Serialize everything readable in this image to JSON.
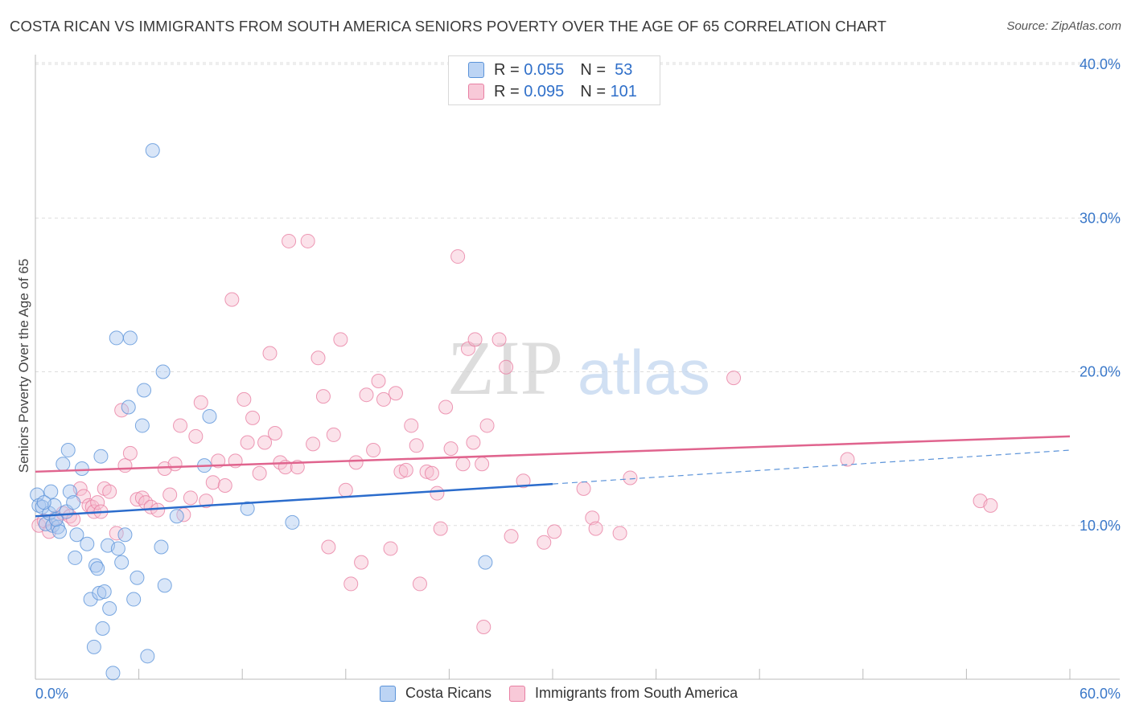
{
  "title": "COSTA RICAN VS IMMIGRANTS FROM SOUTH AMERICA SENIORS POVERTY OVER THE AGE OF 65 CORRELATION CHART",
  "source": "Source: ZipAtlas.com",
  "colors": {
    "blue": "#5b93d9",
    "blue_fill": "#aac8f0",
    "blue_line": "#2b6ccc",
    "pink": "#e87fa3",
    "pink_fill": "#f6bfd1",
    "pink_line": "#e0648e",
    "axis_text": "#3a78c9",
    "grid": "#dddddd"
  },
  "legend": {
    "series": [
      {
        "r_label": "R =",
        "r_value": "0.055",
        "n_label": "N =",
        "n_value": "53"
      },
      {
        "r_label": "R =",
        "r_value": "0.095",
        "n_label": "N =",
        "n_value": "101"
      }
    ]
  },
  "watermark": {
    "part1": "ZIP",
    "part2": "atlas"
  },
  "chart_data": {
    "type": "scatter",
    "title": "COSTA RICAN VS IMMIGRANTS FROM SOUTH AMERICA SENIORS POVERTY OVER THE AGE OF 65 CORRELATION CHART",
    "xlabel": "",
    "ylabel": "Seniors Poverty Over the Age of 65",
    "xlim": [
      0,
      60
    ],
    "ylim": [
      0,
      40
    ],
    "x_tick_labels": [
      "0.0%",
      "60.0%"
    ],
    "y_ticks": [
      10,
      20,
      30,
      40
    ],
    "y_tick_labels": [
      "10.0%",
      "20.0%",
      "30.0%",
      "40.0%"
    ],
    "grid": true,
    "series": [
      {
        "name": "Costa Ricans",
        "color": "#5b93d9",
        "trend": {
          "x0": 0,
          "y0": 10.6,
          "x1": 30,
          "y1": 12.7,
          "dashed_to_x": 60,
          "dashed_to_y": 14.9
        },
        "points": [
          [
            0.1,
            12.0
          ],
          [
            0.2,
            11.3
          ],
          [
            0.4,
            11.2
          ],
          [
            0.6,
            10.1
          ],
          [
            0.8,
            10.8
          ],
          [
            0.9,
            12.2
          ],
          [
            1.0,
            10.0
          ],
          [
            1.1,
            11.3
          ],
          [
            1.3,
            9.9
          ],
          [
            1.4,
            9.6
          ],
          [
            1.6,
            14.0
          ],
          [
            1.8,
            10.9
          ],
          [
            1.9,
            14.9
          ],
          [
            2.0,
            12.2
          ],
          [
            2.2,
            11.5
          ],
          [
            2.3,
            7.9
          ],
          [
            2.4,
            9.4
          ],
          [
            2.7,
            13.7
          ],
          [
            3.0,
            8.8
          ],
          [
            3.2,
            5.2
          ],
          [
            3.4,
            2.1
          ],
          [
            3.5,
            7.4
          ],
          [
            3.6,
            7.2
          ],
          [
            3.7,
            5.6
          ],
          [
            3.8,
            14.5
          ],
          [
            3.9,
            3.3
          ],
          [
            4.0,
            5.7
          ],
          [
            4.2,
            8.7
          ],
          [
            4.3,
            4.6
          ],
          [
            4.5,
            0.4
          ],
          [
            4.7,
            22.2
          ],
          [
            4.8,
            8.5
          ],
          [
            5.0,
            7.6
          ],
          [
            5.2,
            9.4
          ],
          [
            5.4,
            17.7
          ],
          [
            5.5,
            22.2
          ],
          [
            5.7,
            5.2
          ],
          [
            5.9,
            6.6
          ],
          [
            6.2,
            16.5
          ],
          [
            6.3,
            18.8
          ],
          [
            6.5,
            1.5
          ],
          [
            6.8,
            34.4
          ],
          [
            7.3,
            8.6
          ],
          [
            7.4,
            20.0
          ],
          [
            7.5,
            6.1
          ],
          [
            8.2,
            10.6
          ],
          [
            9.8,
            13.9
          ],
          [
            10.1,
            17.1
          ],
          [
            12.3,
            11.1
          ],
          [
            14.9,
            10.2
          ],
          [
            26.1,
            7.6
          ],
          [
            0.5,
            11.5
          ],
          [
            1.2,
            10.4
          ]
        ]
      },
      {
        "name": "Immigrants from South America",
        "color": "#e87fa3",
        "trend": {
          "x0": 0,
          "y0": 13.5,
          "x1": 60,
          "y1": 15.8
        },
        "points": [
          [
            0.2,
            10.0
          ],
          [
            0.5,
            10.3
          ],
          [
            0.8,
            9.6
          ],
          [
            1.2,
            10.5
          ],
          [
            1.6,
            10.8
          ],
          [
            2.0,
            10.6
          ],
          [
            2.2,
            10.4
          ],
          [
            2.6,
            12.4
          ],
          [
            2.8,
            11.9
          ],
          [
            3.1,
            11.3
          ],
          [
            3.3,
            11.2
          ],
          [
            3.4,
            10.9
          ],
          [
            3.6,
            11.5
          ],
          [
            3.8,
            10.9
          ],
          [
            4.0,
            12.4
          ],
          [
            4.3,
            12.2
          ],
          [
            4.7,
            9.5
          ],
          [
            5.0,
            17.5
          ],
          [
            5.2,
            13.9
          ],
          [
            5.5,
            14.7
          ],
          [
            5.9,
            11.7
          ],
          [
            6.2,
            11.8
          ],
          [
            6.4,
            11.5
          ],
          [
            6.7,
            11.2
          ],
          [
            7.1,
            11.0
          ],
          [
            7.5,
            13.7
          ],
          [
            7.8,
            12.0
          ],
          [
            8.1,
            14.0
          ],
          [
            8.4,
            16.5
          ],
          [
            8.6,
            10.7
          ],
          [
            9.0,
            11.8
          ],
          [
            9.3,
            15.8
          ],
          [
            9.6,
            18.0
          ],
          [
            9.9,
            11.6
          ],
          [
            10.3,
            12.8
          ],
          [
            10.6,
            14.2
          ],
          [
            11.0,
            12.6
          ],
          [
            11.4,
            24.7
          ],
          [
            11.6,
            14.2
          ],
          [
            12.1,
            18.2
          ],
          [
            12.3,
            15.4
          ],
          [
            12.6,
            17.0
          ],
          [
            13.0,
            13.4
          ],
          [
            13.3,
            15.4
          ],
          [
            13.6,
            21.2
          ],
          [
            13.9,
            16.0
          ],
          [
            14.2,
            14.1
          ],
          [
            14.5,
            13.8
          ],
          [
            14.7,
            28.5
          ],
          [
            15.2,
            13.8
          ],
          [
            15.8,
            28.5
          ],
          [
            16.1,
            15.3
          ],
          [
            16.4,
            20.9
          ],
          [
            16.7,
            18.4
          ],
          [
            17.0,
            8.6
          ],
          [
            17.3,
            15.9
          ],
          [
            17.7,
            22.1
          ],
          [
            18.0,
            12.3
          ],
          [
            18.3,
            6.2
          ],
          [
            18.6,
            14.1
          ],
          [
            18.9,
            7.6
          ],
          [
            19.2,
            18.5
          ],
          [
            19.6,
            14.9
          ],
          [
            19.9,
            19.4
          ],
          [
            20.2,
            18.2
          ],
          [
            20.6,
            8.5
          ],
          [
            20.9,
            18.6
          ],
          [
            21.2,
            13.5
          ],
          [
            21.5,
            13.6
          ],
          [
            21.8,
            16.5
          ],
          [
            22.1,
            15.2
          ],
          [
            22.3,
            6.2
          ],
          [
            22.7,
            13.5
          ],
          [
            23.0,
            13.4
          ],
          [
            23.3,
            12.1
          ],
          [
            23.5,
            9.8
          ],
          [
            23.8,
            17.7
          ],
          [
            24.1,
            15.0
          ],
          [
            24.5,
            27.5
          ],
          [
            24.8,
            14.0
          ],
          [
            25.1,
            21.5
          ],
          [
            25.4,
            15.4
          ],
          [
            25.5,
            22.1
          ],
          [
            25.9,
            14.0
          ],
          [
            26.0,
            3.4
          ],
          [
            26.2,
            16.5
          ],
          [
            26.9,
            22.1
          ],
          [
            27.3,
            20.3
          ],
          [
            27.6,
            9.3
          ],
          [
            28.3,
            12.9
          ],
          [
            29.5,
            8.9
          ],
          [
            30.1,
            9.6
          ],
          [
            31.8,
            12.4
          ],
          [
            32.3,
            10.5
          ],
          [
            32.5,
            9.8
          ],
          [
            33.9,
            9.5
          ],
          [
            34.5,
            13.1
          ],
          [
            40.5,
            19.6
          ],
          [
            47.1,
            14.3
          ],
          [
            54.8,
            11.6
          ],
          [
            55.4,
            11.3
          ]
        ]
      }
    ]
  }
}
